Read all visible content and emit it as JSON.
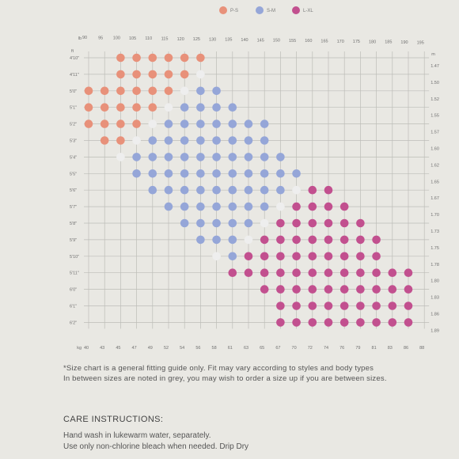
{
  "chart_data": {
    "type": "scatter",
    "legend": [
      {
        "name": "P-S",
        "color": "#e8917a"
      },
      {
        "name": "S-M",
        "color": "#95a6d8"
      },
      {
        "name": "L-XL",
        "color": "#c2508f"
      }
    ],
    "colors": {
      "P-S": "#e8917a",
      "S-M": "#95a6d8",
      "L-XL": "#c2508f",
      "between": "#eeeeee"
    },
    "x_top_label": "lb",
    "x_top_ticks": [
      "90",
      "95",
      "100",
      "105",
      "110",
      "115",
      "120",
      "125",
      "130",
      "135",
      "140",
      "145",
      "150",
      "155",
      "160",
      "165",
      "170",
      "175",
      "180",
      "185",
      "190",
      "195"
    ],
    "x_bottom_label": "kg",
    "x_bottom_ticks": [
      "40",
      "43",
      "45",
      "47",
      "49",
      "52",
      "54",
      "56",
      "58",
      "61",
      "63",
      "65",
      "67",
      "70",
      "72",
      "74",
      "76",
      "79",
      "81",
      "83",
      "86",
      "88"
    ],
    "y_left_label": "ft",
    "y_left_ticks": [
      "4'10\"",
      "4'11\"",
      "5'0\"",
      "5'1\"",
      "5'2\"",
      "5'3\"",
      "5'4\"",
      "5'5\"",
      "5'6\"",
      "5'7\"",
      "5'8\"",
      "5'9\"",
      "5'10\"",
      "5'11\"",
      "6'0\"",
      "6'1\"",
      "6'2\""
    ],
    "y_right_label": "m",
    "y_right_ticks": [
      "1.47",
      "1.50",
      "1.52",
      "1.55",
      "1.57",
      "1.60",
      "1.62",
      "1.65",
      "1.67",
      "1.70",
      "1.73",
      "1.75",
      "1.78",
      "1.80",
      "1.83",
      "1.86",
      "1.89"
    ],
    "rows": [
      {
        "height": "4'10\"",
        "cells": [
          [
            100,
            "P-S"
          ],
          [
            105,
            "P-S"
          ],
          [
            110,
            "P-S"
          ],
          [
            115,
            "P-S"
          ],
          [
            120,
            "P-S"
          ],
          [
            125,
            "P-S"
          ]
        ]
      },
      {
        "height": "4'11\"",
        "cells": [
          [
            100,
            "P-S"
          ],
          [
            105,
            "P-S"
          ],
          [
            110,
            "P-S"
          ],
          [
            115,
            "P-S"
          ],
          [
            120,
            "P-S"
          ],
          [
            125,
            "between"
          ]
        ]
      },
      {
        "height": "5'0\"",
        "cells": [
          [
            90,
            "P-S"
          ],
          [
            95,
            "P-S"
          ],
          [
            100,
            "P-S"
          ],
          [
            105,
            "P-S"
          ],
          [
            110,
            "P-S"
          ],
          [
            115,
            "P-S"
          ],
          [
            120,
            "between"
          ],
          [
            125,
            "S-M"
          ],
          [
            130,
            "S-M"
          ]
        ]
      },
      {
        "height": "5'1\"",
        "cells": [
          [
            90,
            "P-S"
          ],
          [
            95,
            "P-S"
          ],
          [
            100,
            "P-S"
          ],
          [
            105,
            "P-S"
          ],
          [
            110,
            "P-S"
          ],
          [
            115,
            "between"
          ],
          [
            120,
            "S-M"
          ],
          [
            125,
            "S-M"
          ],
          [
            130,
            "S-M"
          ],
          [
            135,
            "S-M"
          ]
        ]
      },
      {
        "height": "5'2\"",
        "cells": [
          [
            90,
            "P-S"
          ],
          [
            95,
            "P-S"
          ],
          [
            100,
            "P-S"
          ],
          [
            105,
            "P-S"
          ],
          [
            110,
            "between"
          ],
          [
            115,
            "S-M"
          ],
          [
            120,
            "S-M"
          ],
          [
            125,
            "S-M"
          ],
          [
            130,
            "S-M"
          ],
          [
            135,
            "S-M"
          ],
          [
            140,
            "S-M"
          ],
          [
            145,
            "S-M"
          ]
        ]
      },
      {
        "height": "5'3\"",
        "cells": [
          [
            95,
            "P-S"
          ],
          [
            100,
            "P-S"
          ],
          [
            105,
            "between"
          ],
          [
            110,
            "S-M"
          ],
          [
            115,
            "S-M"
          ],
          [
            120,
            "S-M"
          ],
          [
            125,
            "S-M"
          ],
          [
            130,
            "S-M"
          ],
          [
            135,
            "S-M"
          ],
          [
            140,
            "S-M"
          ],
          [
            145,
            "S-M"
          ]
        ]
      },
      {
        "height": "5'4\"",
        "cells": [
          [
            100,
            "between"
          ],
          [
            105,
            "S-M"
          ],
          [
            110,
            "S-M"
          ],
          [
            115,
            "S-M"
          ],
          [
            120,
            "S-M"
          ],
          [
            125,
            "S-M"
          ],
          [
            130,
            "S-M"
          ],
          [
            135,
            "S-M"
          ],
          [
            140,
            "S-M"
          ],
          [
            145,
            "S-M"
          ],
          [
            150,
            "S-M"
          ]
        ]
      },
      {
        "height": "5'5\"",
        "cells": [
          [
            105,
            "S-M"
          ],
          [
            110,
            "S-M"
          ],
          [
            115,
            "S-M"
          ],
          [
            120,
            "S-M"
          ],
          [
            125,
            "S-M"
          ],
          [
            130,
            "S-M"
          ],
          [
            135,
            "S-M"
          ],
          [
            140,
            "S-M"
          ],
          [
            145,
            "S-M"
          ],
          [
            150,
            "S-M"
          ],
          [
            155,
            "S-M"
          ]
        ]
      },
      {
        "height": "5'6\"",
        "cells": [
          [
            110,
            "S-M"
          ],
          [
            115,
            "S-M"
          ],
          [
            120,
            "S-M"
          ],
          [
            125,
            "S-M"
          ],
          [
            130,
            "S-M"
          ],
          [
            135,
            "S-M"
          ],
          [
            140,
            "S-M"
          ],
          [
            145,
            "S-M"
          ],
          [
            150,
            "S-M"
          ],
          [
            155,
            "between"
          ],
          [
            160,
            "L-XL"
          ],
          [
            165,
            "L-XL"
          ]
        ]
      },
      {
        "height": "5'7\"",
        "cells": [
          [
            115,
            "S-M"
          ],
          [
            120,
            "S-M"
          ],
          [
            125,
            "S-M"
          ],
          [
            130,
            "S-M"
          ],
          [
            135,
            "S-M"
          ],
          [
            140,
            "S-M"
          ],
          [
            145,
            "S-M"
          ],
          [
            150,
            "between"
          ],
          [
            155,
            "L-XL"
          ],
          [
            160,
            "L-XL"
          ],
          [
            165,
            "L-XL"
          ],
          [
            170,
            "L-XL"
          ]
        ]
      },
      {
        "height": "5'8\"",
        "cells": [
          [
            120,
            "S-M"
          ],
          [
            125,
            "S-M"
          ],
          [
            130,
            "S-M"
          ],
          [
            135,
            "S-M"
          ],
          [
            140,
            "S-M"
          ],
          [
            145,
            "between"
          ],
          [
            150,
            "L-XL"
          ],
          [
            155,
            "L-XL"
          ],
          [
            160,
            "L-XL"
          ],
          [
            165,
            "L-XL"
          ],
          [
            170,
            "L-XL"
          ],
          [
            175,
            "L-XL"
          ]
        ]
      },
      {
        "height": "5'9\"",
        "cells": [
          [
            125,
            "S-M"
          ],
          [
            130,
            "S-M"
          ],
          [
            135,
            "S-M"
          ],
          [
            140,
            "between"
          ],
          [
            145,
            "L-XL"
          ],
          [
            150,
            "L-XL"
          ],
          [
            155,
            "L-XL"
          ],
          [
            160,
            "L-XL"
          ],
          [
            165,
            "L-XL"
          ],
          [
            170,
            "L-XL"
          ],
          [
            175,
            "L-XL"
          ],
          [
            180,
            "L-XL"
          ]
        ]
      },
      {
        "height": "5'10\"",
        "cells": [
          [
            130,
            "between"
          ],
          [
            135,
            "S-M"
          ],
          [
            140,
            "L-XL"
          ],
          [
            145,
            "L-XL"
          ],
          [
            150,
            "L-XL"
          ],
          [
            155,
            "L-XL"
          ],
          [
            160,
            "L-XL"
          ],
          [
            165,
            "L-XL"
          ],
          [
            170,
            "L-XL"
          ],
          [
            175,
            "L-XL"
          ],
          [
            180,
            "L-XL"
          ]
        ]
      },
      {
        "height": "5'11\"",
        "cells": [
          [
            135,
            "L-XL"
          ],
          [
            140,
            "L-XL"
          ],
          [
            145,
            "L-XL"
          ],
          [
            150,
            "L-XL"
          ],
          [
            155,
            "L-XL"
          ],
          [
            160,
            "L-XL"
          ],
          [
            165,
            "L-XL"
          ],
          [
            170,
            "L-XL"
          ],
          [
            175,
            "L-XL"
          ],
          [
            180,
            "L-XL"
          ],
          [
            185,
            "L-XL"
          ],
          [
            190,
            "L-XL"
          ]
        ]
      },
      {
        "height": "6'0\"",
        "cells": [
          [
            145,
            "L-XL"
          ],
          [
            150,
            "L-XL"
          ],
          [
            155,
            "L-XL"
          ],
          [
            160,
            "L-XL"
          ],
          [
            165,
            "L-XL"
          ],
          [
            170,
            "L-XL"
          ],
          [
            175,
            "L-XL"
          ],
          [
            180,
            "L-XL"
          ],
          [
            185,
            "L-XL"
          ],
          [
            190,
            "L-XL"
          ]
        ]
      },
      {
        "height": "6'1\"",
        "cells": [
          [
            150,
            "L-XL"
          ],
          [
            155,
            "L-XL"
          ],
          [
            160,
            "L-XL"
          ],
          [
            165,
            "L-XL"
          ],
          [
            170,
            "L-XL"
          ],
          [
            175,
            "L-XL"
          ],
          [
            180,
            "L-XL"
          ],
          [
            185,
            "L-XL"
          ],
          [
            190,
            "L-XL"
          ]
        ]
      },
      {
        "height": "6'2\"",
        "cells": [
          [
            150,
            "L-XL"
          ],
          [
            155,
            "L-XL"
          ],
          [
            160,
            "L-XL"
          ],
          [
            165,
            "L-XL"
          ],
          [
            170,
            "L-XL"
          ],
          [
            175,
            "L-XL"
          ],
          [
            180,
            "L-XL"
          ],
          [
            185,
            "L-XL"
          ],
          [
            190,
            "L-XL"
          ]
        ]
      }
    ],
    "grid": true,
    "legend_position": "top-center"
  },
  "notes": {
    "line1": "*Size chart is a general fitting guide only. Fit may vary according to styles and body types",
    "line2": "In between sizes are noted in grey, you may wish to order a size up if you are between sizes."
  },
  "care": {
    "title": "CARE INSTRUCTIONS:",
    "line1": "Hand wash in lukewarm water, separately.",
    "line2": "Use only non-chlorine bleach when needed. Drip Dry"
  }
}
